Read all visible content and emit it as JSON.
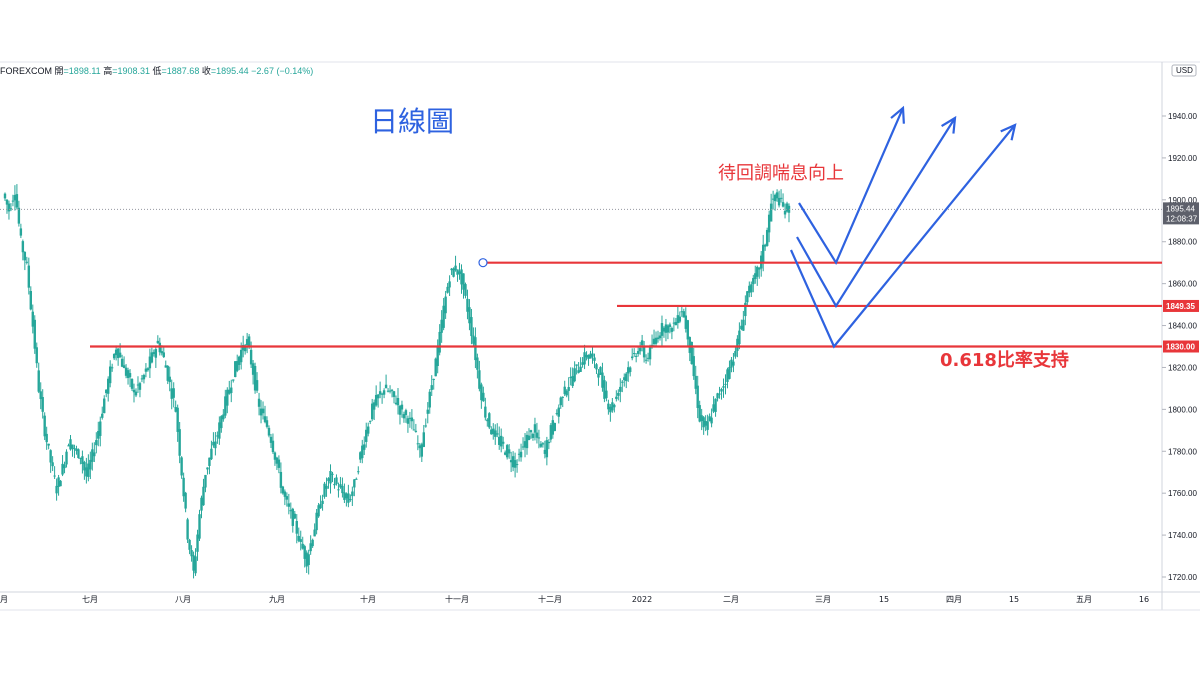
{
  "header": {
    "symbol": "FOREXCOM",
    "open_label": "開",
    "open": "=1898.11",
    "high_label": "高",
    "high": "=1908.31",
    "low_label": "低",
    "low": "=1887.68",
    "close_label": "收",
    "close": "=1895.44",
    "change": "−2.67 (−0.14%)"
  },
  "annotations": {
    "title": "日線圖",
    "target_note": "待回調喘息向上",
    "support_note": "0.618比率支持"
  },
  "colors": {
    "up_candle": "#26a69a",
    "level_line": "#e8363a",
    "scenario_arrow": "#2e62e0",
    "price_label_bg": "#e8363a",
    "current_price_bg": "#5d606b"
  },
  "chart_data": {
    "type": "candlestick",
    "currency": "USD",
    "y_axis": {
      "range": [
        1714,
        1952
      ],
      "ticks": [
        1720,
        1740,
        1760,
        1780,
        1800,
        1820,
        1840,
        1860,
        1880,
        1900,
        1920,
        1940
      ],
      "tick_labels": [
        "1720.00",
        "1740.00",
        "1760.00",
        "1780.00",
        "1800.00",
        "1820.00",
        "1840.00",
        "1860.00",
        "1880.00",
        "1900.00",
        "1920.00",
        "1940.00"
      ]
    },
    "x_axis": {
      "labels": [
        "月",
        "七月",
        "八月",
        "九月",
        "十月",
        "十一月",
        "十二月",
        "2022",
        "二月",
        "三月",
        "15",
        "四月",
        "15",
        "五月",
        "16"
      ]
    },
    "current_price": {
      "value": 1895.44,
      "label": "1895.44",
      "countdown": "12:08:37"
    },
    "levels": [
      {
        "value": 1870,
        "label": ""
      },
      {
        "value": 1849.35,
        "label": "1849.35"
      },
      {
        "value": 1830.0,
        "label": "1830.00"
      }
    ],
    "price_path": [
      1903,
      1895,
      1905,
      1880,
      1868,
      1840,
      1810,
      1790,
      1775,
      1762,
      1772,
      1785,
      1780,
      1778,
      1768,
      1778,
      1790,
      1805,
      1818,
      1830,
      1822,
      1815,
      1808,
      1812,
      1818,
      1825,
      1832,
      1824,
      1812,
      1800,
      1770,
      1740,
      1722,
      1750,
      1770,
      1780,
      1788,
      1800,
      1810,
      1820,
      1828,
      1832,
      1818,
      1800,
      1795,
      1786,
      1774,
      1760,
      1752,
      1745,
      1736,
      1728,
      1740,
      1752,
      1762,
      1768,
      1764,
      1760,
      1756,
      1764,
      1778,
      1790,
      1800,
      1806,
      1810,
      1808,
      1804,
      1798,
      1796,
      1790,
      1780,
      1795,
      1812,
      1828,
      1848,
      1864,
      1868,
      1862,
      1848,
      1832,
      1812,
      1798,
      1790,
      1786,
      1782,
      1778,
      1774,
      1780,
      1786,
      1790,
      1784,
      1780,
      1790,
      1798,
      1808,
      1812,
      1818,
      1822,
      1826,
      1824,
      1818,
      1808,
      1800,
      1806,
      1814,
      1820,
      1826,
      1830,
      1824,
      1830,
      1836,
      1840,
      1838,
      1842,
      1848,
      1836,
      1816,
      1796,
      1790,
      1798,
      1806,
      1812,
      1820,
      1828,
      1840,
      1856,
      1860,
      1868,
      1880,
      1898,
      1902,
      1896,
      1895.44
    ],
    "scenarios": [
      {
        "pullback_to": 1870,
        "direction": "up"
      },
      {
        "pullback_to": 1849.35,
        "direction": "up"
      },
      {
        "pullback_to": 1830.0,
        "direction": "up"
      }
    ]
  }
}
